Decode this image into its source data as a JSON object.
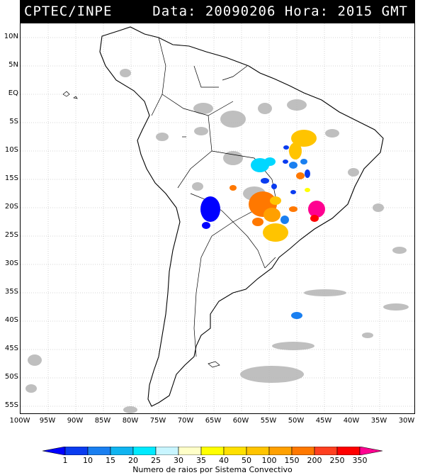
{
  "header": {
    "source": "CPTEC/INPE",
    "timestamp": "Data: 20090206 Hora: 2015 GMT"
  },
  "map": {
    "lat_labels": [
      "10N",
      "5N",
      "EQ",
      "5S",
      "10S",
      "15S",
      "20S",
      "25S",
      "30S",
      "35S",
      "40S",
      "45S",
      "50S",
      "55S"
    ],
    "lon_labels": [
      "100W",
      "95W",
      "90W",
      "85W",
      "80W",
      "75W",
      "70W",
      "65W",
      "60W",
      "55W",
      "50W",
      "45W",
      "40W",
      "35W",
      "30W"
    ]
  },
  "legend": {
    "caption": "Numero de raios por Sistema Convectivo",
    "labels": [
      "1",
      "10",
      "15",
      "20",
      "25",
      "30",
      "35",
      "40",
      "50",
      "100",
      "150",
      "200",
      "250",
      "350"
    ],
    "colors": [
      "#0000ff",
      "#0a3cf0",
      "#1a7ff0",
      "#10b4f0",
      "#00eaff",
      "#c8f5ff",
      "#ffffc8",
      "#ffff00",
      "#ffe000",
      "#ffc400",
      "#ffa000",
      "#ff7800",
      "#ff4020",
      "#ff0000",
      "#ff0090"
    ]
  },
  "colors": {
    "cloud_gray": "#b4b4b4",
    "coast": "#000000",
    "header_bg": "#000000",
    "header_fg": "#ffffff"
  }
}
